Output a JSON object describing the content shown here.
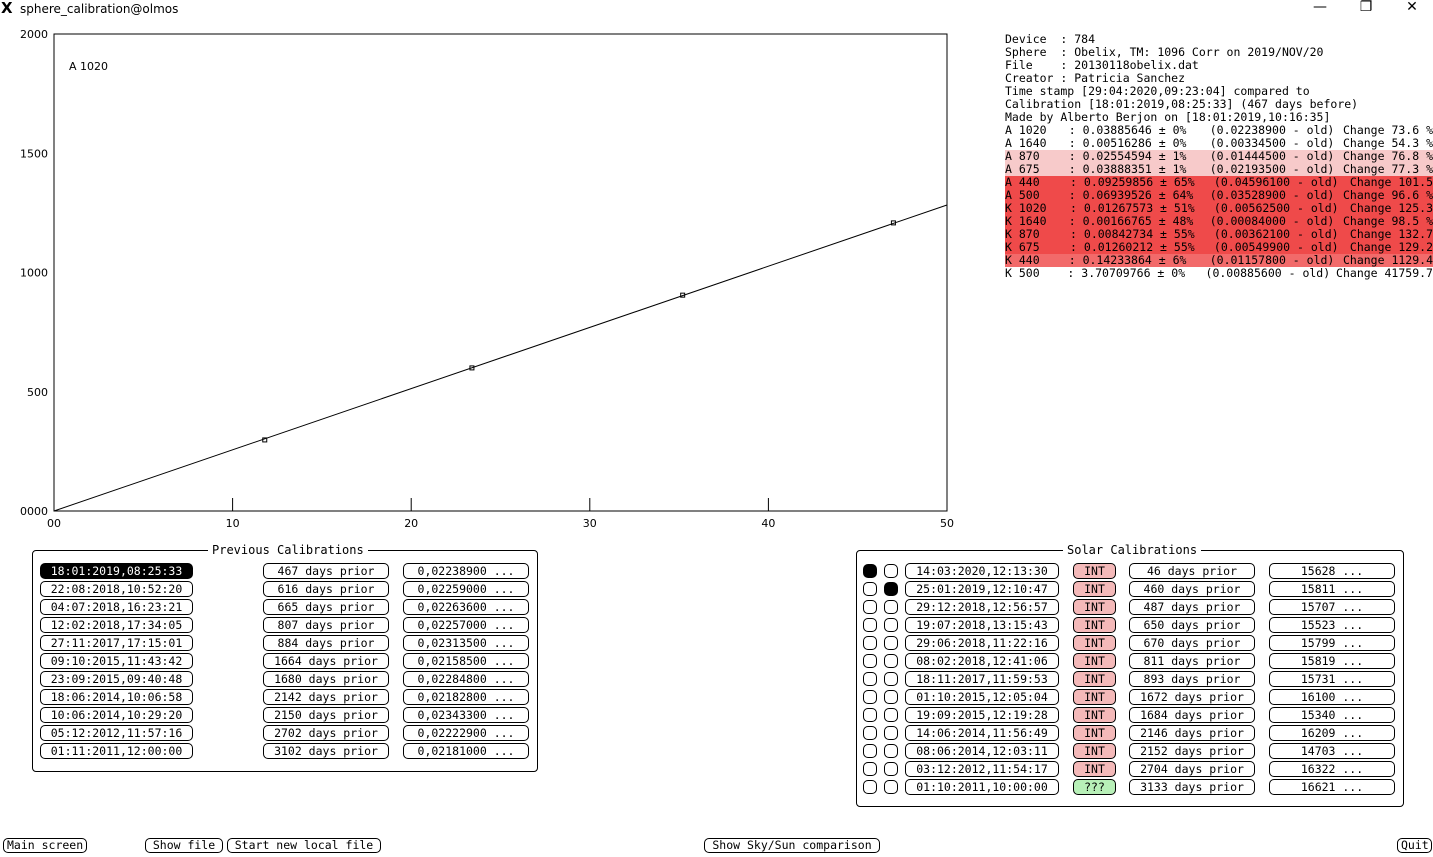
{
  "window": {
    "title": "sphere_calibration@olmos",
    "app_icon": "X",
    "minimize": "—",
    "maximize": "❐",
    "close": "✕"
  },
  "chart_data": {
    "type": "line",
    "annotation": "A 1020",
    "x_ticks": [
      "00",
      "10",
      "20",
      "30",
      "40",
      "50"
    ],
    "y_ticks": [
      "0000",
      "500",
      "1000",
      "1500",
      "2000"
    ],
    "xlim": [
      0,
      50
    ],
    "ylim": [
      0,
      2000
    ],
    "line": {
      "x": [
        0,
        50
      ],
      "y": [
        0,
        1283
      ]
    },
    "points": [
      {
        "x": 11.8,
        "y": 298
      },
      {
        "x": 23.4,
        "y": 600
      },
      {
        "x": 35.2,
        "y": 905
      },
      {
        "x": 47.0,
        "y": 1208
      }
    ]
  },
  "info": {
    "header": [
      "Device  : 784",
      "Sphere  : Obelix, TM: 1096 Corr on 2019/NOV/20",
      "File    : 20130118obelix.dat",
      "Creator : Patricia Sanchez",
      "Time stamp [29:04:2020,09:23:04] compared to",
      "Calibration [18:01:2019,08:25:33] (467 days before)",
      "Made by Alberto Berjon on [18:01:2019,10:16:35]"
    ],
    "colors": {
      "white": "#ffffff",
      "light": "#f7caca",
      "red": "#ef4a4a",
      "mid": "#f26a6a"
    },
    "rows": [
      {
        "label": "A 1020",
        "value": ": 0.03885646 ± 0%",
        "old": "(0.02238900 - old)",
        "change": "Change 73.6 %",
        "level": "white"
      },
      {
        "label": "A 1640",
        "value": ": 0.00516286 ± 0%",
        "old": "(0.00334500 - old)",
        "change": "Change 54.3 %",
        "level": "white"
      },
      {
        "label": "A 870",
        "value": ": 0.02554594 ± 1%",
        "old": "(0.01444500 - old)",
        "change": "Change 76.8 %",
        "level": "light"
      },
      {
        "label": "A 675",
        "value": ": 0.03888351 ± 1%",
        "old": "(0.02193500 - old)",
        "change": "Change 77.3 %",
        "level": "light"
      },
      {
        "label": "A 440",
        "value": ": 0.09259856 ± 65%",
        "old": "(0.04596100 - old)",
        "change": "Change 101.5",
        "level": "red"
      },
      {
        "label": "A 500",
        "value": ": 0.06939526 ± 64%",
        "old": "(0.03528900 - old)",
        "change": "Change 96.6 %",
        "level": "red"
      },
      {
        "label": "K 1020",
        "value": ": 0.01267573 ± 51%",
        "old": "(0.00562500 - old)",
        "change": "Change 125.3",
        "level": "red"
      },
      {
        "label": "K 1640",
        "value": ": 0.00166765 ± 48%",
        "old": "(0.00084000 - old)",
        "change": "Change 98.5 %",
        "level": "red"
      },
      {
        "label": "K 870",
        "value": ": 0.00842734 ± 55%",
        "old": "(0.00362100 - old)",
        "change": "Change 132.7",
        "level": "red"
      },
      {
        "label": "K 675",
        "value": ": 0.01260212 ± 55%",
        "old": "(0.00549900 - old)",
        "change": "Change 129.2",
        "level": "red"
      },
      {
        "label": "K 440",
        "value": ": 0.14233864 ± 6%",
        "old": "(0.01157800 - old)",
        "change": "Change 1129.4",
        "level": "mid"
      },
      {
        "label": "K 500",
        "value": ": 3.70709766 ± 0%",
        "old": "(0.00885600 - old)",
        "change": "Change 41759.7",
        "level": "white"
      }
    ]
  },
  "previous": {
    "title": "Previous Calibrations",
    "rows": [
      {
        "date": "18:01:2019,08:25:33",
        "prior": "467 days prior",
        "value": "0,02238900 ...",
        "selected": true
      },
      {
        "date": "22:08:2018,10:52:20",
        "prior": "616 days prior",
        "value": "0,02259000 ..."
      },
      {
        "date": "04:07:2018,16:23:21",
        "prior": "665 days prior",
        "value": "0,02263600 ..."
      },
      {
        "date": "12:02:2018,17:34:05",
        "prior": "807 days prior",
        "value": "0,02257000 ..."
      },
      {
        "date": "27:11:2017,17:15:01",
        "prior": "884 days prior",
        "value": "0,02313500 ..."
      },
      {
        "date": "09:10:2015,11:43:42",
        "prior": "1664 days prior",
        "value": "0,02158500 ..."
      },
      {
        "date": "23:09:2015,09:40:48",
        "prior": "1680 days prior",
        "value": "0,02284800 ..."
      },
      {
        "date": "18:06:2014,10:06:58",
        "prior": "2142 days prior",
        "value": "0,02182800 ..."
      },
      {
        "date": "10:06:2014,10:29:20",
        "prior": "2150 days prior",
        "value": "0,02343300 ..."
      },
      {
        "date": "05:12:2012,11:57:16",
        "prior": "2702 days prior",
        "value": "0,02222900 ..."
      },
      {
        "date": "01:11:2011,12:00:00",
        "prior": "3102 days prior",
        "value": "0,02181000 ..."
      }
    ]
  },
  "solar": {
    "title": "Solar Calibrations",
    "rows": [
      {
        "r1": true,
        "r2": false,
        "date": "14:03:2020,12:13:30",
        "tag": "INT",
        "prior": "46 days prior",
        "value": "15628 ..."
      },
      {
        "r1": false,
        "r2": true,
        "date": "25:01:2019,12:10:47",
        "tag": "INT",
        "prior": "460 days prior",
        "value": "15811 ..."
      },
      {
        "r1": false,
        "r2": false,
        "date": "29:12:2018,12:56:57",
        "tag": "INT",
        "prior": "487 days prior",
        "value": "15707 ..."
      },
      {
        "r1": false,
        "r2": false,
        "date": "19:07:2018,13:15:43",
        "tag": "INT",
        "prior": "650 days prior",
        "value": "15523 ..."
      },
      {
        "r1": false,
        "r2": false,
        "date": "29:06:2018,11:22:16",
        "tag": "INT",
        "prior": "670 days prior",
        "value": "15799 ..."
      },
      {
        "r1": false,
        "r2": false,
        "date": "08:02:2018,12:41:06",
        "tag": "INT",
        "prior": "811 days prior",
        "value": "15819 ..."
      },
      {
        "r1": false,
        "r2": false,
        "date": "18:11:2017,11:59:53",
        "tag": "INT",
        "prior": "893 days prior",
        "value": "15731 ..."
      },
      {
        "r1": false,
        "r2": false,
        "date": "01:10:2015,12:05:04",
        "tag": "INT",
        "prior": "1672 days prior",
        "value": "16100 ..."
      },
      {
        "r1": false,
        "r2": false,
        "date": "19:09:2015,12:19:28",
        "tag": "INT",
        "prior": "1684 days prior",
        "value": "15340 ..."
      },
      {
        "r1": false,
        "r2": false,
        "date": "14:06:2014,11:56:49",
        "tag": "INT",
        "prior": "2146 days prior",
        "value": "16209 ..."
      },
      {
        "r1": false,
        "r2": false,
        "date": "08:06:2014,12:03:11",
        "tag": "INT",
        "prior": "2152 days prior",
        "value": "14703 ..."
      },
      {
        "r1": false,
        "r2": false,
        "date": "03:12:2012,11:54:17",
        "tag": "INT",
        "prior": "2704 days prior",
        "value": "16322 ..."
      },
      {
        "r1": false,
        "r2": false,
        "date": "01:10:2011,10:00:00",
        "tag": "???",
        "prior": "3133 days prior",
        "value": "16621 ..."
      }
    ]
  },
  "buttons": {
    "main": "Main screen",
    "show_file": "Show file",
    "new_file": "Start new local file",
    "sky_sun": "Show Sky/Sun comparison",
    "quit": "Quit"
  }
}
